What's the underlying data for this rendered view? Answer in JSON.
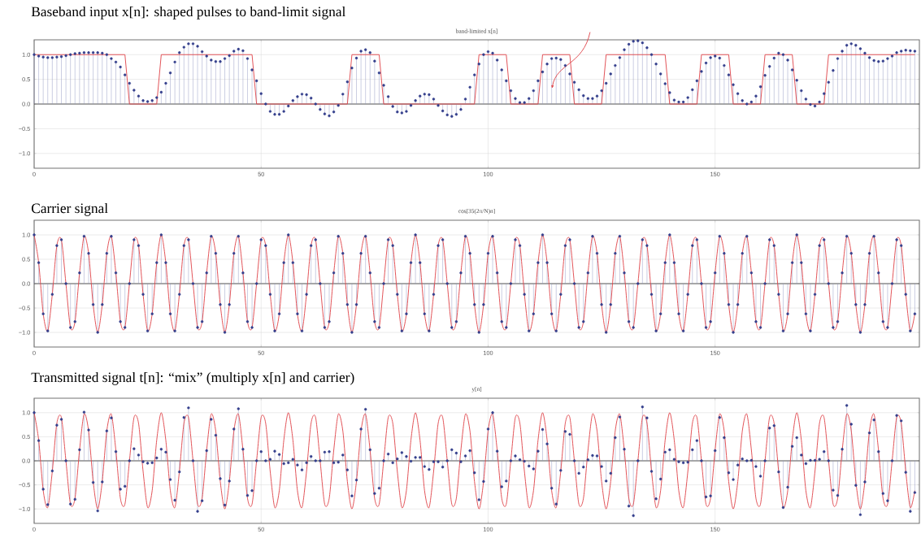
{
  "chart_data": [
    {
      "type": "lollipop",
      "title": "Baseband input x[n]: shaped pulses to band-limit signal",
      "subtitle": "band-limited x[n]",
      "x": [
        0,
        1,
        2,
        3,
        4,
        5,
        6,
        7,
        8,
        9,
        10,
        11,
        12,
        13,
        14,
        15,
        16,
        17,
        18,
        19,
        20,
        21,
        22,
        23,
        24,
        25,
        26,
        27,
        28,
        29,
        30,
        31,
        32,
        33,
        34,
        35,
        36,
        37,
        38,
        39,
        40,
        41,
        42,
        43,
        44,
        45,
        46,
        47,
        48,
        49,
        50,
        51,
        52,
        53,
        54,
        55,
        56,
        57,
        58,
        59,
        60,
        61,
        62,
        63,
        64,
        65,
        66,
        67,
        68,
        69,
        70,
        71,
        72,
        73,
        74,
        75,
        76,
        77,
        78,
        79,
        80,
        81,
        82,
        83,
        84,
        85,
        86,
        87,
        88,
        89,
        90,
        91,
        92,
        93,
        94,
        95,
        96,
        97,
        98,
        99,
        100,
        101,
        102,
        103,
        104,
        105,
        106,
        107,
        108,
        109,
        110,
        111,
        112,
        113,
        114,
        115,
        116,
        117,
        118,
        119,
        120,
        121,
        122,
        123,
        124,
        125,
        126,
        127,
        128,
        129,
        130,
        131,
        132,
        133,
        134,
        135,
        136,
        137,
        138,
        139,
        140,
        141,
        142,
        143,
        144,
        145,
        146,
        147,
        148,
        149,
        150,
        151,
        152,
        153,
        154,
        155,
        156,
        157,
        158,
        159,
        160,
        161,
        162,
        163,
        164,
        165,
        166,
        167,
        168,
        169,
        170,
        171,
        172,
        173,
        174,
        175,
        176,
        177,
        178,
        179,
        180,
        181,
        182,
        183,
        184,
        185,
        186,
        187,
        188,
        189,
        190,
        191,
        192,
        193,
        194
      ],
      "series": [
        {
          "color": "#343f8c",
          "values": [
            1.0,
            0.97,
            0.95,
            0.94,
            0.94,
            0.95,
            0.96,
            0.98,
            1.0,
            1.02,
            1.03,
            1.04,
            1.04,
            1.04,
            1.04,
            1.03,
            1.0,
            0.92,
            0.85,
            0.75,
            0.59,
            0.42,
            0.28,
            0.16,
            0.07,
            0.05,
            0.07,
            0.13,
            0.24,
            0.42,
            0.63,
            0.85,
            1.04,
            1.15,
            1.22,
            1.22,
            1.17,
            1.06,
            0.97,
            0.89,
            0.86,
            0.86,
            0.92,
            0.98,
            1.07,
            1.11,
            1.08,
            0.92,
            0.69,
            0.47,
            0.21,
            0.0,
            -0.15,
            -0.21,
            -0.21,
            -0.15,
            -0.04,
            0.07,
            0.15,
            0.2,
            0.19,
            0.12,
            0.0,
            -0.11,
            -0.2,
            -0.24,
            -0.16,
            -0.03,
            0.2,
            0.45,
            0.73,
            0.93,
            1.07,
            1.1,
            1.04,
            0.87,
            0.63,
            0.38,
            0.15,
            -0.05,
            -0.16,
            -0.18,
            -0.15,
            -0.03,
            0.07,
            0.16,
            0.2,
            0.19,
            0.1,
            -0.03,
            -0.14,
            -0.22,
            -0.25,
            -0.21,
            -0.11,
            0.1,
            0.34,
            0.59,
            0.81,
            1.0,
            1.06,
            1.03,
            0.89,
            0.69,
            0.47,
            0.27,
            0.11,
            0.03,
            0.03,
            0.11,
            0.27,
            0.47,
            0.65,
            0.81,
            0.92,
            0.93,
            0.9,
            0.78,
            0.61,
            0.44,
            0.29,
            0.17,
            0.11,
            0.11,
            0.16,
            0.27,
            0.42,
            0.61,
            0.78,
            0.94,
            1.1,
            1.21,
            1.27,
            1.28,
            1.24,
            1.14,
            1.0,
            0.81,
            0.61,
            0.41,
            0.23,
            0.08,
            0.04,
            0.04,
            0.13,
            0.29,
            0.47,
            0.66,
            0.83,
            0.94,
            0.97,
            0.93,
            0.78,
            0.59,
            0.39,
            0.21,
            0.07,
            0.0,
            0.04,
            0.16,
            0.35,
            0.58,
            0.76,
            0.93,
            1.03,
            1.0,
            0.89,
            0.69,
            0.48,
            0.27,
            0.1,
            -0.01,
            -0.04,
            0.04,
            0.21,
            0.44,
            0.68,
            0.92,
            1.07,
            1.19,
            1.22,
            1.19,
            1.12,
            1.03,
            0.94,
            0.88,
            0.86,
            0.87,
            0.92,
            0.97,
            1.04,
            1.07,
            1.09,
            1.08,
            1.07
          ]
        },
        {
          "type": "line",
          "color": "#e0474c",
          "marker": "none",
          "x": [
            0,
            20,
            21,
            27,
            28,
            48,
            49,
            69,
            70,
            76,
            77,
            97,
            98,
            104,
            105,
            111,
            112,
            118,
            119,
            125,
            126,
            139,
            140,
            146,
            147,
            153,
            154,
            160,
            161,
            167,
            168,
            174,
            175,
            194
          ],
          "values": [
            1,
            1,
            0,
            0,
            1,
            1,
            0,
            0,
            1,
            1,
            0,
            0,
            1,
            1,
            0,
            0,
            1,
            1,
            0,
            0,
            1,
            1,
            0,
            0,
            1,
            1,
            0,
            0,
            1,
            1,
            0,
            0,
            1,
            1
          ]
        }
      ],
      "xlim": [
        0,
        195
      ],
      "ylim": [
        -1.3,
        1.3
      ],
      "xticks": [
        0,
        50,
        100,
        150
      ],
      "yticks": [
        {
          "value": -1.0,
          "label": "−1.0"
        },
        {
          "value": -0.5,
          "label": "−0.5"
        },
        {
          "value": 0.0,
          "label": "0.0"
        },
        {
          "value": 0.5,
          "label": "0.5"
        },
        {
          "value": 1.0,
          "label": "1.0"
        }
      ],
      "grid": true,
      "marker": "circle"
    },
    {
      "type": "lollipop",
      "title": "Carrier signal",
      "subtitle": "cos[35(2π/N)n]",
      "x": [
        0,
        1,
        2,
        3,
        4,
        5,
        6,
        7,
        8,
        9,
        10,
        11,
        12,
        13,
        14,
        15,
        16,
        17,
        18,
        19,
        20,
        21,
        22,
        23,
        24,
        25,
        26,
        27,
        28,
        29,
        30,
        31,
        32,
        33,
        34,
        35,
        36,
        37,
        38,
        39,
        40,
        41,
        42,
        43,
        44,
        45,
        46,
        47,
        48,
        49,
        50,
        51,
        52,
        53,
        54,
        55,
        56,
        57,
        58,
        59,
        60,
        61,
        62,
        63,
        64,
        65,
        66,
        67,
        68,
        69,
        70,
        71,
        72,
        73,
        74,
        75,
        76,
        77,
        78,
        79,
        80,
        81,
        82,
        83,
        84,
        85,
        86,
        87,
        88,
        89,
        90,
        91,
        92,
        93,
        94,
        95,
        96,
        97,
        98,
        99,
        100,
        101,
        102,
        103,
        104,
        105,
        106,
        107,
        108,
        109,
        110,
        111,
        112,
        113,
        114,
        115,
        116,
        117,
        118,
        119,
        120,
        121,
        122,
        123,
        124,
        125,
        126,
        127,
        128,
        129,
        130,
        131,
        132,
        133,
        134,
        135,
        136,
        137,
        138,
        139,
        140,
        141,
        142,
        143,
        144,
        145,
        146,
        147,
        148,
        149,
        150,
        151,
        152,
        153,
        154,
        155,
        156,
        157,
        158,
        159,
        160,
        161,
        162,
        163,
        164,
        165,
        166,
        167,
        168,
        169,
        170,
        171,
        172,
        173,
        174,
        175,
        176,
        177,
        178,
        179,
        180,
        181,
        182,
        183,
        184,
        185,
        186,
        187,
        188,
        189,
        190,
        191,
        192,
        193,
        194
      ],
      "series": [
        {
          "color": "#343f8c",
          "values": [
            1.0,
            0.43,
            -0.62,
            -0.97,
            -0.22,
            0.78,
            0.9,
            0.0,
            -0.9,
            -0.78,
            0.22,
            0.97,
            0.62,
            -0.43,
            -1.0,
            -0.43,
            0.62,
            0.97,
            0.22,
            -0.78,
            -0.9,
            0.0,
            0.9,
            0.78,
            -0.22,
            -0.97,
            -0.62,
            0.43,
            1.0,
            0.43,
            -0.62,
            -0.97,
            -0.22,
            0.78,
            0.9,
            0.0,
            -0.9,
            -0.78,
            0.22,
            0.97,
            0.62,
            -0.43,
            -1.0,
            -0.43,
            0.62,
            0.97,
            0.22,
            -0.78,
            -0.9,
            0.0,
            0.9,
            0.78,
            -0.22,
            -0.97,
            -0.62,
            0.43,
            1.0,
            0.43,
            -0.62,
            -0.97,
            -0.22,
            0.78,
            0.9,
            0.0,
            -0.9,
            -0.78,
            0.22,
            0.97,
            0.62,
            -0.43,
            -1.0,
            -0.43,
            0.62,
            0.97,
            0.22,
            -0.78,
            -0.9,
            0.0,
            0.9,
            0.78,
            -0.22,
            -0.97,
            -0.62,
            0.43,
            1.0,
            0.43,
            -0.62,
            -0.97,
            -0.22,
            0.78,
            0.9,
            0.0,
            -0.9,
            -0.78,
            0.22,
            0.97,
            0.62,
            -0.43,
            -1.0,
            -0.43,
            0.62,
            0.97,
            0.22,
            -0.78,
            -0.9,
            0.0,
            0.9,
            0.78,
            -0.22,
            -0.97,
            -0.62,
            0.43,
            1.0,
            0.43,
            -0.62,
            -0.97,
            -0.22,
            0.78,
            0.9,
            0.0,
            -0.9,
            -0.78,
            0.22,
            0.97,
            0.62,
            -0.43,
            -1.0,
            -0.43,
            0.62,
            0.97,
            0.22,
            -0.78,
            -0.9,
            0.0,
            0.9,
            0.78,
            -0.22,
            -0.97,
            -0.62,
            0.43,
            1.0,
            0.43,
            -0.62,
            -0.97,
            -0.22,
            0.78,
            0.9,
            0.0,
            -0.9,
            -0.78,
            0.22,
            0.97,
            0.62,
            -0.43,
            -1.0,
            -0.43,
            0.62,
            0.97,
            0.22,
            -0.78,
            -0.9,
            0.0,
            0.9,
            0.78,
            -0.22,
            -0.97,
            -0.62,
            0.43,
            1.0,
            0.43,
            -0.62,
            -0.97,
            -0.22,
            0.78,
            0.9,
            0.0,
            -0.9,
            -0.78,
            0.22,
            0.97,
            0.62,
            -0.43,
            -1.0,
            -0.43,
            0.62,
            0.97,
            0.22,
            -0.78,
            -0.9,
            0.0,
            0.9,
            0.78,
            -0.22,
            -0.97,
            -0.62
          ]
        },
        {
          "type": "line",
          "color": "#e0474c",
          "marker": "none",
          "values": [
            1.0,
            0.43,
            -0.62,
            -0.97,
            -0.22,
            0.78,
            0.9,
            0.0,
            -0.9,
            -0.78,
            0.22,
            0.97,
            0.62,
            -0.43,
            -1.0,
            -0.43,
            0.62,
            0.97,
            0.22,
            -0.78,
            -0.9,
            0.0,
            0.9,
            0.78,
            -0.22,
            -0.97,
            -0.62,
            0.43,
            1.0,
            0.43,
            -0.62,
            -0.97,
            -0.22,
            0.78,
            0.9,
            0.0,
            -0.9,
            -0.78,
            0.22,
            0.97,
            0.62,
            -0.43,
            -1.0,
            -0.43,
            0.62,
            0.97,
            0.22,
            -0.78,
            -0.9,
            0.0,
            0.9,
            0.78,
            -0.22,
            -0.97,
            -0.62,
            0.43,
            1.0,
            0.43,
            -0.62,
            -0.97,
            -0.22,
            0.78,
            0.9,
            0.0,
            -0.9,
            -0.78,
            0.22,
            0.97,
            0.62,
            -0.43,
            -1.0,
            -0.43,
            0.62,
            0.97,
            0.22,
            -0.78,
            -0.9,
            0.0,
            0.9,
            0.78,
            -0.22,
            -0.97,
            -0.62,
            0.43,
            1.0,
            0.43,
            -0.62,
            -0.97,
            -0.22,
            0.78,
            0.9,
            0.0,
            -0.9,
            -0.78,
            0.22,
            0.97,
            0.62,
            -0.43,
            -1.0,
            -0.43,
            0.62,
            0.97,
            0.22,
            -0.78,
            -0.9,
            0.0,
            0.9,
            0.78,
            -0.22,
            -0.97,
            -0.62,
            0.43,
            1.0,
            0.43,
            -0.62,
            -0.97,
            -0.22,
            0.78,
            0.9,
            0.0,
            -0.9,
            -0.78,
            0.22,
            0.97,
            0.62,
            -0.43,
            -1.0,
            -0.43,
            0.62,
            0.97,
            0.22,
            -0.78,
            -0.9,
            0.0,
            0.9,
            0.78,
            -0.22,
            -0.97,
            -0.62,
            0.43,
            1.0,
            0.43,
            -0.62,
            -0.97,
            -0.22,
            0.78,
            0.9,
            0.0,
            -0.9,
            -0.78,
            0.22,
            0.97,
            0.62,
            -0.43,
            -1.0,
            -0.43,
            0.62,
            0.97,
            0.22,
            -0.78,
            -0.9,
            0.0,
            0.9,
            0.78,
            -0.22,
            -0.97,
            -0.62,
            0.43,
            1.0,
            0.43,
            -0.62,
            -0.97,
            -0.22,
            0.78,
            0.9,
            0.0,
            -0.9,
            -0.78,
            0.22,
            0.97,
            0.62,
            -0.43,
            -1.0,
            -0.43,
            0.62,
            0.97,
            0.22,
            -0.78,
            -0.9,
            0.0,
            0.9,
            0.78,
            -0.22,
            -0.97,
            -0.62
          ]
        }
      ],
      "xlim": [
        0,
        195
      ],
      "ylim": [
        -1.3,
        1.3
      ],
      "xticks": [
        0,
        50,
        100,
        150
      ],
      "yticks": [
        {
          "value": -1.0,
          "label": "−1.0"
        },
        {
          "value": -0.5,
          "label": "−0.5"
        },
        {
          "value": 0.0,
          "label": "0.0"
        },
        {
          "value": 0.5,
          "label": "0.5"
        },
        {
          "value": 1.0,
          "label": "1.0"
        }
      ],
      "grid": true,
      "marker": "circle"
    },
    {
      "type": "lollipop",
      "title": "Transmitted signal t[n]: “mix” (multiply x[n] and carrier)",
      "subtitle": "y[n]",
      "x": [
        0,
        1,
        2,
        3,
        4,
        5,
        6,
        7,
        8,
        9,
        10,
        11,
        12,
        13,
        14,
        15,
        16,
        17,
        18,
        19,
        20,
        21,
        22,
        23,
        24,
        25,
        26,
        27,
        28,
        29,
        30,
        31,
        32,
        33,
        34,
        35,
        36,
        37,
        38,
        39,
        40,
        41,
        42,
        43,
        44,
        45,
        46,
        47,
        48,
        49,
        50,
        51,
        52,
        53,
        54,
        55,
        56,
        57,
        58,
        59,
        60,
        61,
        62,
        63,
        64,
        65,
        66,
        67,
        68,
        69,
        70,
        71,
        72,
        73,
        74,
        75,
        76,
        77,
        78,
        79,
        80,
        81,
        82,
        83,
        84,
        85,
        86,
        87,
        88,
        89,
        90,
        91,
        92,
        93,
        94,
        95,
        96,
        97,
        98,
        99,
        100,
        101,
        102,
        103,
        104,
        105,
        106,
        107,
        108,
        109,
        110,
        111,
        112,
        113,
        114,
        115,
        116,
        117,
        118,
        119,
        120,
        121,
        122,
        123,
        124,
        125,
        126,
        127,
        128,
        129,
        130,
        131,
        132,
        133,
        134,
        135,
        136,
        137,
        138,
        139,
        140,
        141,
        142,
        143,
        144,
        145,
        146,
        147,
        148,
        149,
        150,
        151,
        152,
        153,
        154,
        155,
        156,
        157,
        158,
        159,
        160,
        161,
        162,
        163,
        164,
        165,
        166,
        167,
        168,
        169,
        170,
        171,
        172,
        173,
        174,
        175,
        176,
        177,
        178,
        179,
        180,
        181,
        182,
        183,
        184,
        185,
        186,
        187,
        188,
        189,
        190,
        191,
        192,
        193,
        194
      ],
      "series": [
        {
          "color": "#343f8c",
          "values": [
            1.0,
            0.42,
            -0.59,
            -0.91,
            -0.21,
            0.74,
            0.86,
            0.0,
            -0.9,
            -0.8,
            0.23,
            1.01,
            0.64,
            -0.45,
            -1.04,
            -0.44,
            0.62,
            0.89,
            0.19,
            -0.59,
            -0.53,
            0.0,
            0.25,
            0.12,
            -0.02,
            -0.05,
            -0.04,
            0.06,
            0.24,
            0.18,
            -0.39,
            -0.82,
            -0.23,
            0.9,
            1.1,
            0.0,
            -1.05,
            -0.83,
            0.21,
            0.86,
            0.53,
            -0.37,
            -0.92,
            -0.42,
            0.66,
            1.08,
            0.24,
            -0.72,
            -0.62,
            0.0,
            0.19,
            0.0,
            0.03,
            0.2,
            0.13,
            -0.06,
            -0.04,
            0.03,
            -0.09,
            -0.19,
            -0.04,
            0.09,
            0.0,
            0.0,
            0.18,
            0.19,
            -0.04,
            -0.03,
            0.12,
            -0.19,
            -0.73,
            -0.4,
            0.66,
            1.07,
            0.23,
            -0.68,
            -0.57,
            0.0,
            0.14,
            -0.04,
            0.04,
            0.17,
            0.09,
            -0.01,
            0.07,
            0.07,
            -0.12,
            -0.18,
            -0.02,
            -0.02,
            -0.13,
            0.0,
            0.23,
            0.16,
            -0.02,
            0.1,
            0.21,
            -0.25,
            -0.81,
            -0.43,
            0.66,
            1.0,
            0.2,
            -0.54,
            -0.42,
            0.0,
            0.1,
            0.02,
            -0.01,
            -0.11,
            -0.17,
            0.2,
            0.65,
            0.35,
            -0.57,
            -0.9,
            -0.2,
            0.61,
            0.55,
            0.0,
            -0.26,
            -0.13,
            0.02,
            0.11,
            0.1,
            -0.12,
            -0.42,
            -0.26,
            0.48,
            0.91,
            0.24,
            -0.94,
            -1.14,
            0.0,
            1.12,
            0.89,
            -0.22,
            -0.79,
            -0.38,
            0.18,
            0.23,
            0.03,
            -0.02,
            -0.04,
            -0.03,
            0.23,
            0.42,
            0.0,
            -0.75,
            -0.73,
            0.21,
            0.9,
            0.48,
            -0.25,
            -0.39,
            -0.09,
            0.04,
            0.0,
            0.01,
            -0.12,
            -0.32,
            0.0,
            0.68,
            0.73,
            -0.23,
            -0.97,
            -0.55,
            0.3,
            0.48,
            0.12,
            -0.06,
            0.01,
            0.01,
            0.03,
            0.19,
            0.0,
            -0.61,
            -0.72,
            0.24,
            1.15,
            0.76,
            -0.51,
            -1.12,
            -0.44,
            0.58,
            0.85,
            0.19,
            -0.68,
            -0.83,
            0.0,
            0.94,
            0.83,
            -0.24,
            -1.05,
            -0.66
          ]
        },
        {
          "type": "line",
          "color": "#e0474c",
          "marker": "none",
          "values": [
            1.0,
            0.43,
            -0.62,
            -0.97,
            -0.22,
            0.78,
            0.9,
            0.0,
            -0.9,
            -0.78,
            0.22,
            0.97,
            0.62,
            -0.43,
            -1.0,
            -0.43,
            0.62,
            0.97,
            0.22,
            -0.78,
            -0.9,
            0.0,
            0.9,
            0.78,
            -0.22,
            -0.97,
            -0.62,
            0.43,
            1.0,
            0.43,
            -0.62,
            -0.97,
            -0.22,
            0.78,
            0.9,
            0.0,
            -0.9,
            -0.78,
            0.22,
            0.97,
            0.62,
            -0.43,
            -1.0,
            -0.43,
            0.62,
            0.97,
            0.22,
            -0.78,
            -0.9,
            0.0,
            0.9,
            0.78,
            -0.22,
            -0.97,
            -0.62,
            0.43,
            1.0,
            0.43,
            -0.62,
            -0.97,
            -0.22,
            0.78,
            0.9,
            0.0,
            -0.9,
            -0.78,
            0.22,
            0.97,
            0.62,
            -0.43,
            -1.0,
            -0.43,
            0.62,
            0.97,
            0.22,
            -0.78,
            -0.9,
            0.0,
            0.9,
            0.78,
            -0.22,
            -0.97,
            -0.62,
            0.43,
            1.0,
            0.43,
            -0.62,
            -0.97,
            -0.22,
            0.78,
            0.9,
            0.0,
            -0.9,
            -0.78,
            0.22,
            0.97,
            0.62,
            -0.43,
            -1.0,
            -0.43,
            0.62,
            0.97,
            0.22,
            -0.78,
            -0.9,
            0.0,
            0.9,
            0.78,
            -0.22,
            -0.97,
            -0.62,
            0.43,
            1.0,
            0.43,
            -0.62,
            -0.97,
            -0.22,
            0.78,
            0.9,
            0.0,
            -0.9,
            -0.78,
            0.22,
            0.97,
            0.62,
            -0.43,
            -1.0,
            -0.43,
            0.62,
            0.97,
            0.22,
            -0.78,
            -0.9,
            0.0,
            0.9,
            0.78,
            -0.22,
            -0.97,
            -0.62,
            0.43,
            1.0,
            0.43,
            -0.62,
            -0.97,
            -0.22,
            0.78,
            0.9,
            0.0,
            -0.9,
            -0.78,
            0.22,
            0.97,
            0.62,
            -0.43,
            -1.0,
            -0.43,
            0.62,
            0.97,
            0.22,
            -0.78,
            -0.9,
            0.0,
            0.9,
            0.78,
            -0.22,
            -0.97,
            -0.62,
            0.43,
            1.0,
            0.43,
            -0.62,
            -0.97,
            -0.22,
            0.78,
            0.9,
            0.0,
            -0.9,
            -0.78,
            0.22,
            0.97,
            0.62,
            -0.43,
            -1.0,
            -0.43,
            0.62,
            0.97,
            0.22,
            -0.78,
            -0.9,
            0.0,
            0.9,
            0.78,
            -0.22,
            -0.97,
            -0.62
          ]
        }
      ],
      "xlim": [
        0,
        195
      ],
      "ylim": [
        -1.3,
        1.3
      ],
      "xticks": [
        0,
        50,
        100,
        150
      ],
      "yticks": [
        {
          "value": -1.0,
          "label": "−1.0"
        },
        {
          "value": -0.5,
          "label": "−0.5"
        },
        {
          "value": 0.0,
          "label": "0.0"
        },
        {
          "value": 0.5,
          "label": "0.5"
        },
        {
          "value": 1.0,
          "label": "1.0"
        }
      ],
      "grid": true,
      "marker": "circle"
    }
  ]
}
